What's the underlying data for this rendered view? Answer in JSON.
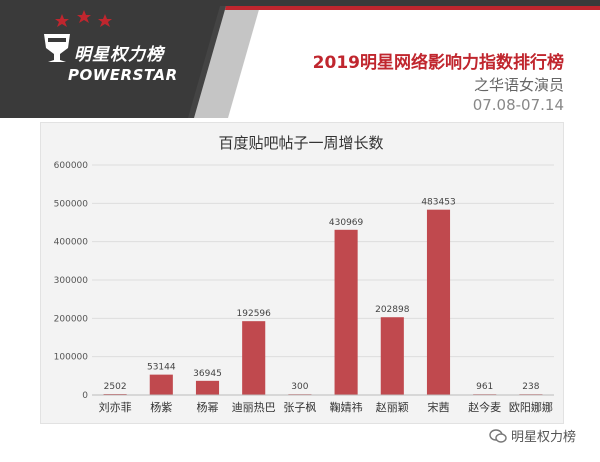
{
  "header": {
    "logo_cn": "明星权力榜",
    "logo_en": "POWERSTAR",
    "title": "2019明星网络影响力指数排行榜",
    "subtitle": "之华语女演员",
    "date_range": "07.08-07.14",
    "accent_color": "#c0262e"
  },
  "watermark": {
    "text": "明星权力榜",
    "icon": "wechat-icon"
  },
  "chart_data": {
    "type": "bar",
    "title": "百度贴吧帖子一周增长数",
    "categories": [
      "刘亦菲",
      "杨紫",
      "杨幂",
      "迪丽热巴",
      "张子枫",
      "鞠婧祎",
      "赵丽颖",
      "宋茜",
      "赵今麦",
      "欧阳娜娜"
    ],
    "values": [
      2502,
      53144,
      36945,
      192596,
      300,
      430969,
      202898,
      483453,
      961,
      238
    ],
    "data_labels": [
      "2502",
      "53144",
      "36945",
      "192596",
      "300",
      "430969",
      "202898",
      "483453",
      "961",
      "238"
    ],
    "ylim": [
      0,
      600000
    ],
    "yticks": [
      0,
      100000,
      200000,
      300000,
      400000,
      500000,
      600000
    ],
    "ytick_labels": [
      "0",
      "100000",
      "200000",
      "300000",
      "400000",
      "500000",
      "600000"
    ],
    "grid": true,
    "bar_color": "#c0494e"
  }
}
